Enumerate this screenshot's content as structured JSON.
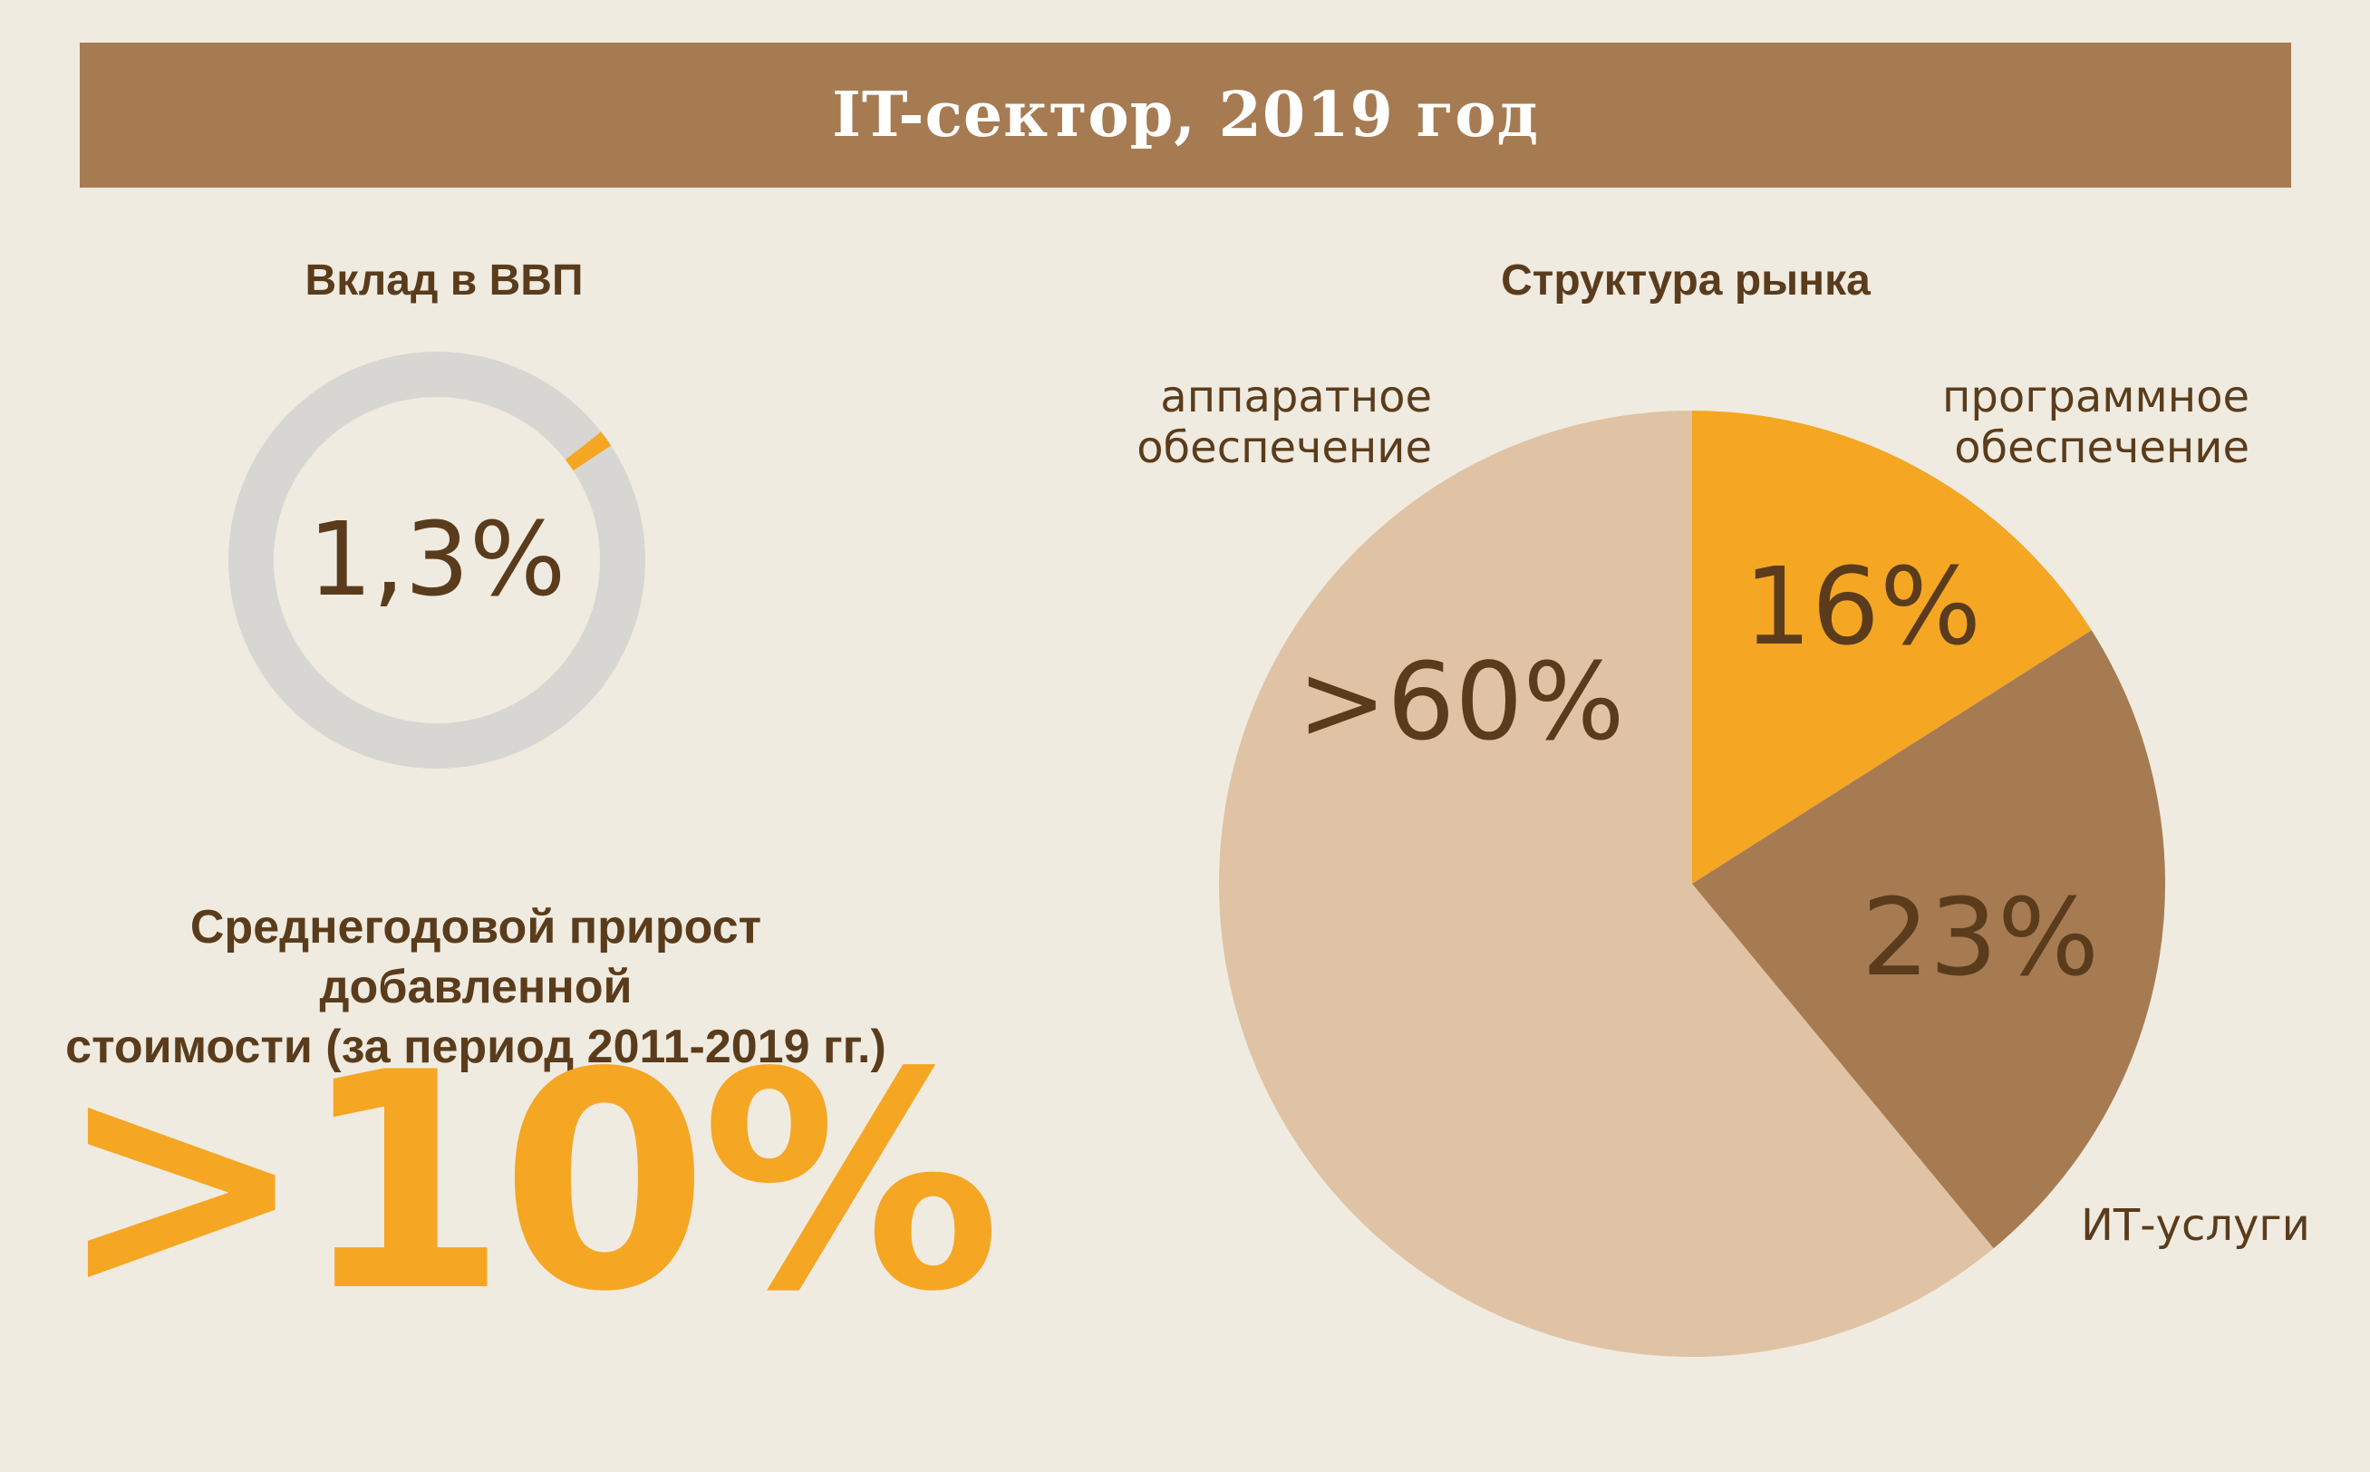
{
  "title": "IT-сектор, 2019 год",
  "gdp": {
    "heading": "Вклад в ВВП",
    "value_text": "1,3%",
    "share": 0.013,
    "colors": {
      "track": "#d8d6d2",
      "fill": "#f5a623"
    }
  },
  "growth": {
    "heading_line1": "Среднегодовой прирост добавленной",
    "heading_line2": "стоимости (за период 2011-2019 гг.)",
    "value_text": ">10%",
    "color": "#f5a623"
  },
  "chart_data": {
    "type": "pie",
    "title": "Структура рынка",
    "slices": [
      {
        "label_line1": "программное",
        "label_line2": "обеспечение",
        "value": 16,
        "value_text": "16%",
        "color": "#f5a623"
      },
      {
        "label_line1": "ИТ-услуги",
        "label_line2": "",
        "value": 23,
        "value_text": "23%",
        "color": "#a67b52"
      },
      {
        "label_line1": "аппаратное",
        "label_line2": "обеспечение",
        "value": 61,
        "value_text": ">60%",
        "color": "#dfc3a4"
      }
    ]
  },
  "colors": {
    "background": "#f0ebe0",
    "banner": "#a67b52",
    "text": "#5a3c1c"
  }
}
